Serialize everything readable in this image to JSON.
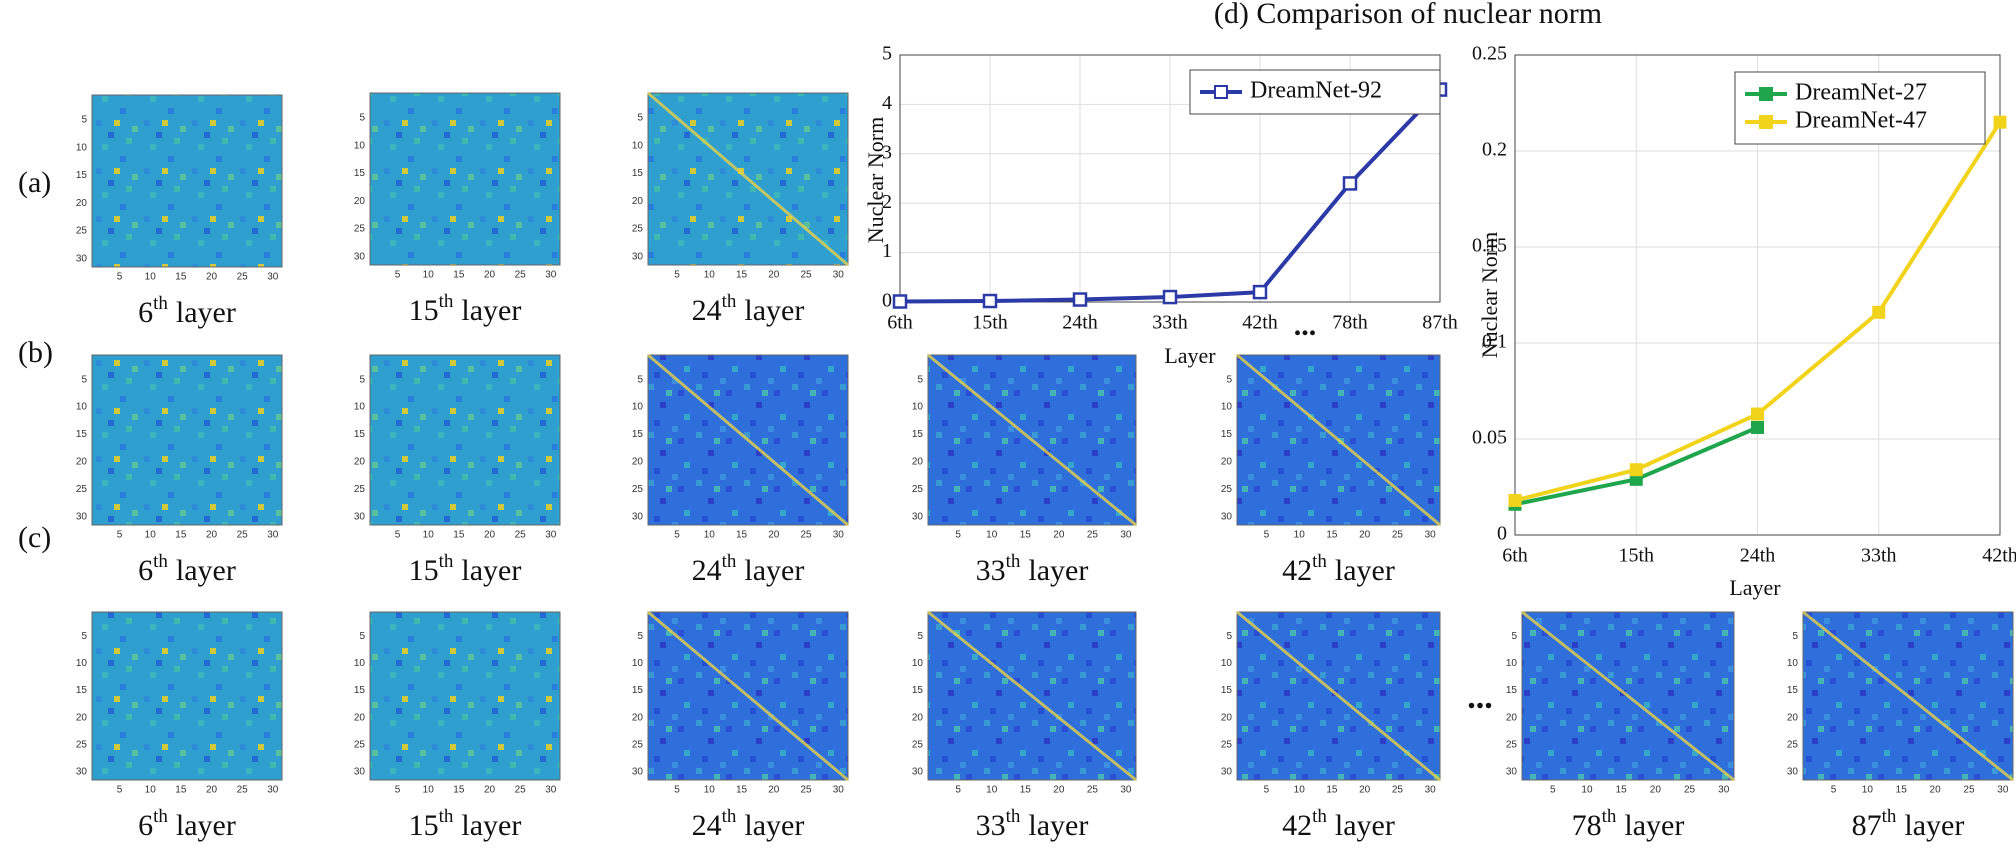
{
  "row_labels": [
    "(a)",
    "(b)",
    "(c)"
  ],
  "layer_word": "layer",
  "heatmap_ticks": [
    5,
    10,
    15,
    20,
    25,
    30
  ],
  "rows": [
    {
      "panels": [
        {
          "number": "6",
          "suffix": "th"
        },
        {
          "number": "15",
          "suffix": "th"
        },
        {
          "number": "24",
          "suffix": "th"
        }
      ]
    },
    {
      "panels": [
        {
          "number": "6",
          "suffix": "th"
        },
        {
          "number": "15",
          "suffix": "th"
        },
        {
          "number": "24",
          "suffix": "th"
        },
        {
          "number": "33",
          "suffix": "th"
        },
        {
          "number": "42",
          "suffix": "th"
        }
      ]
    },
    {
      "panels": [
        {
          "number": "6",
          "suffix": "th"
        },
        {
          "number": "15",
          "suffix": "th"
        },
        {
          "number": "24",
          "suffix": "th"
        },
        {
          "number": "33",
          "suffix": "th"
        },
        {
          "number": "42",
          "suffix": "th"
        },
        {
          "number": "78",
          "suffix": "th"
        },
        {
          "number": "87",
          "suffix": "th"
        }
      ]
    }
  ],
  "row_c_break": "...",
  "panel_d_title": "(d) Comparison of nuclear norm",
  "chart_data": [
    {
      "type": "line",
      "categories": [
        "6th",
        "15th",
        "24th",
        "33th",
        "42th",
        "78th",
        "87th"
      ],
      "axis_break": "...",
      "xlabel": "Layer",
      "ylabel": "Nuclear Norm",
      "ylim": [
        0,
        5
      ],
      "yticks": [
        0,
        1,
        2,
        3,
        4,
        5
      ],
      "grid": true,
      "legend": "upper right",
      "marker": "hollow-square",
      "series": [
        {
          "name": "DreamNet-92",
          "color": "#2b3aa6",
          "values": [
            0.01,
            0.02,
            0.05,
            0.1,
            0.2,
            2.4,
            4.3
          ]
        }
      ]
    },
    {
      "type": "line",
      "categories": [
        "6th",
        "15th",
        "24th",
        "33th",
        "42th"
      ],
      "xlabel": "Layer",
      "ylabel": "Nuclear Norm",
      "ylim": [
        0,
        0.25
      ],
      "yticks": [
        0,
        0.05,
        0.1,
        0.15,
        0.2,
        0.25
      ],
      "grid": true,
      "legend": "upper right",
      "marker": "filled-square",
      "series": [
        {
          "name": "DreamNet-27",
          "color": "#1fa64d",
          "values": [
            0.016,
            0.029,
            0.056,
            null,
            null
          ]
        },
        {
          "name": "DreamNet-47",
          "color": "#f2d31c",
          "values": [
            0.018,
            0.034,
            0.063,
            0.116,
            0.215
          ]
        }
      ]
    }
  ]
}
